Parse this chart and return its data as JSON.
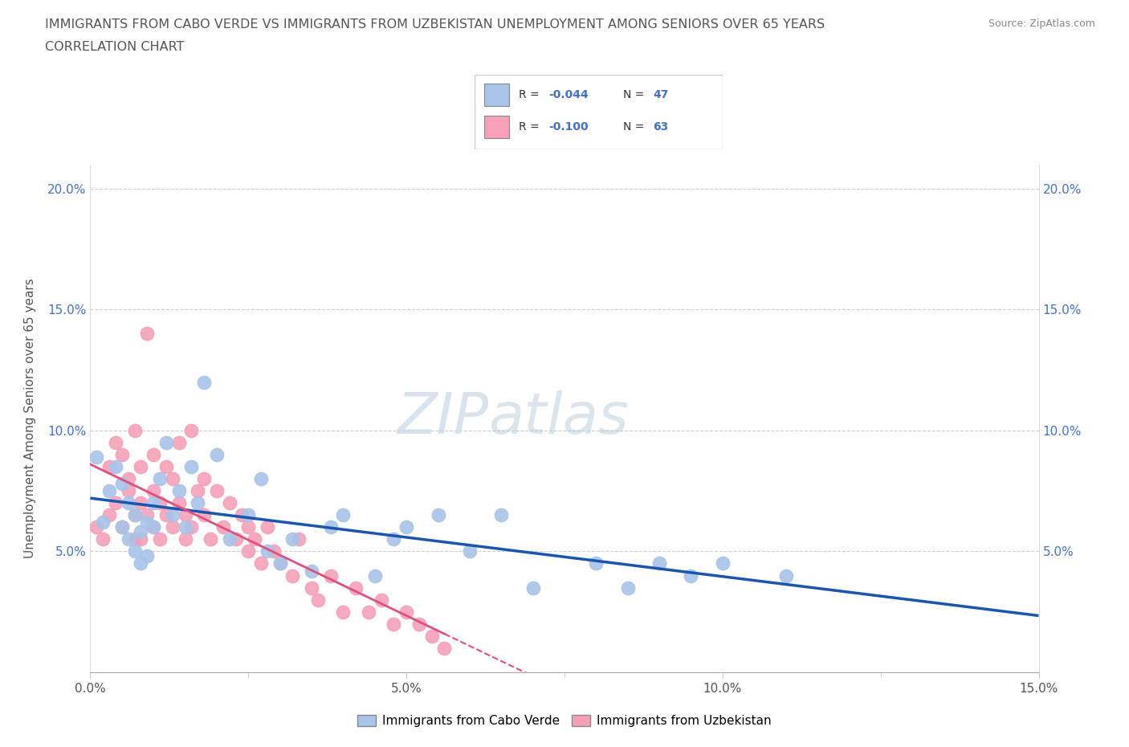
{
  "title_line1": "IMMIGRANTS FROM CABO VERDE VS IMMIGRANTS FROM UZBEKISTAN UNEMPLOYMENT AMONG SENIORS OVER 65 YEARS",
  "title_line2": "CORRELATION CHART",
  "source": "Source: ZipAtlas.com",
  "ylabel": "Unemployment Among Seniors over 65 years",
  "xlim": [
    0.0,
    0.15
  ],
  "ylim": [
    0.0,
    0.21
  ],
  "x_ticks": [
    0.0,
    0.025,
    0.05,
    0.075,
    0.1,
    0.125,
    0.15
  ],
  "x_tick_labels_major": [
    "0.0%",
    "",
    "5.0%",
    "",
    "10.0%",
    "",
    "15.0%"
  ],
  "y_ticks": [
    0.0,
    0.05,
    0.1,
    0.15,
    0.2
  ],
  "y_tick_labels": [
    "",
    "5.0%",
    "10.0%",
    "15.0%",
    "20.0%"
  ],
  "cabo_verde_R": -0.044,
  "cabo_verde_N": 47,
  "uzbekistan_R": -0.1,
  "uzbekistan_N": 63,
  "cabo_verde_color": "#a8c4e8",
  "uzbekistan_color": "#f5a0b8",
  "cabo_verde_line_color": "#1a56b0",
  "uzbekistan_line_color": "#e0507a",
  "watermark_zip": "ZIP",
  "watermark_atlas": "atlas",
  "legend_label_cabo": "Immigrants from Cabo Verde",
  "legend_label_uzbek": "Immigrants from Uzbekistan",
  "cabo_verde_x": [
    0.001,
    0.002,
    0.003,
    0.004,
    0.005,
    0.005,
    0.006,
    0.006,
    0.007,
    0.007,
    0.008,
    0.008,
    0.009,
    0.009,
    0.01,
    0.01,
    0.011,
    0.012,
    0.013,
    0.014,
    0.015,
    0.016,
    0.017,
    0.018,
    0.02,
    0.022,
    0.025,
    0.027,
    0.028,
    0.03,
    0.032,
    0.035,
    0.038,
    0.04,
    0.045,
    0.048,
    0.05,
    0.055,
    0.06,
    0.065,
    0.07,
    0.08,
    0.085,
    0.09,
    0.095,
    0.1,
    0.11
  ],
  "cabo_verde_y": [
    0.089,
    0.062,
    0.075,
    0.085,
    0.078,
    0.06,
    0.07,
    0.055,
    0.065,
    0.05,
    0.058,
    0.045,
    0.062,
    0.048,
    0.06,
    0.07,
    0.08,
    0.095,
    0.065,
    0.075,
    0.06,
    0.085,
    0.07,
    0.12,
    0.09,
    0.055,
    0.065,
    0.08,
    0.05,
    0.045,
    0.055,
    0.042,
    0.06,
    0.065,
    0.04,
    0.055,
    0.06,
    0.065,
    0.05,
    0.065,
    0.035,
    0.045,
    0.035,
    0.045,
    0.04,
    0.045,
    0.04
  ],
  "uzbekistan_x": [
    0.001,
    0.002,
    0.003,
    0.003,
    0.004,
    0.004,
    0.005,
    0.005,
    0.006,
    0.006,
    0.007,
    0.007,
    0.007,
    0.008,
    0.008,
    0.008,
    0.009,
    0.009,
    0.01,
    0.01,
    0.01,
    0.011,
    0.011,
    0.012,
    0.012,
    0.013,
    0.013,
    0.014,
    0.014,
    0.015,
    0.015,
    0.016,
    0.016,
    0.017,
    0.018,
    0.018,
    0.019,
    0.02,
    0.021,
    0.022,
    0.023,
    0.024,
    0.025,
    0.025,
    0.026,
    0.027,
    0.028,
    0.029,
    0.03,
    0.032,
    0.033,
    0.035,
    0.036,
    0.038,
    0.04,
    0.042,
    0.044,
    0.046,
    0.048,
    0.05,
    0.052,
    0.054,
    0.056
  ],
  "uzbekistan_y": [
    0.06,
    0.055,
    0.065,
    0.085,
    0.07,
    0.095,
    0.09,
    0.06,
    0.075,
    0.08,
    0.065,
    0.055,
    0.1,
    0.07,
    0.085,
    0.055,
    0.065,
    0.14,
    0.06,
    0.075,
    0.09,
    0.07,
    0.055,
    0.065,
    0.085,
    0.06,
    0.08,
    0.07,
    0.095,
    0.055,
    0.065,
    0.06,
    0.1,
    0.075,
    0.065,
    0.08,
    0.055,
    0.075,
    0.06,
    0.07,
    0.055,
    0.065,
    0.05,
    0.06,
    0.055,
    0.045,
    0.06,
    0.05,
    0.045,
    0.04,
    0.055,
    0.035,
    0.03,
    0.04,
    0.025,
    0.035,
    0.025,
    0.03,
    0.02,
    0.025,
    0.02,
    0.015,
    0.01
  ]
}
